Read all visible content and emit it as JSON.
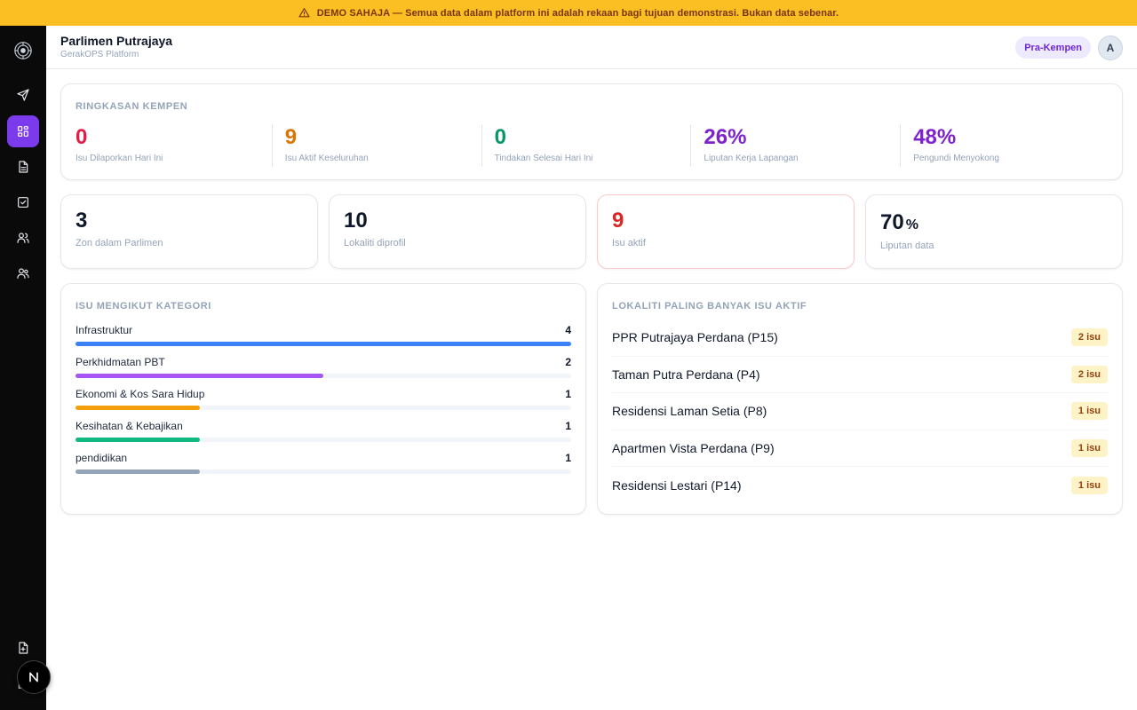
{
  "banner": {
    "text": "DEMO SAHAJA — Semua data dalam platform ini adalah rekaan bagi tujuan demonstrasi. Bukan data sebenar.",
    "icon": "warning-triangle-icon"
  },
  "sidebar": {
    "logo_icon": "emblem-logo-icon",
    "items": [
      {
        "icon": "send-icon",
        "active": false
      },
      {
        "icon": "dashboard-grid-icon",
        "active": true
      },
      {
        "icon": "document-icon",
        "active": false
      },
      {
        "icon": "checkbox-icon",
        "active": false
      },
      {
        "icon": "users-icon",
        "active": false
      },
      {
        "icon": "team-icon",
        "active": false
      }
    ],
    "bottom_items": [
      {
        "icon": "file-plus-icon"
      },
      {
        "icon": "logout-icon"
      }
    ]
  },
  "header": {
    "title": "Parlimen Putrajaya",
    "subtitle": "GerakOPS Platform",
    "phase_badge": "Pra-Kempen",
    "avatar_initial": "A"
  },
  "summary": {
    "title": "RINGKASAN KEMPEN",
    "metrics": [
      {
        "value": "0",
        "label": "Isu Dilaporkan Hari Ini",
        "color": "#e11d48"
      },
      {
        "value": "9",
        "label": "Isu Aktif Keseluruhan",
        "color": "#d97706"
      },
      {
        "value": "0",
        "label": "Tindakan Selesai Hari Ini",
        "color": "#059669"
      },
      {
        "value": "26%",
        "label": "Liputan Kerja Lapangan",
        "color": "#7e22ce"
      },
      {
        "value": "48%",
        "label": "Pengundi Menyokong",
        "color": "#7e22ce"
      }
    ]
  },
  "stats": [
    {
      "value": "3",
      "unit": "",
      "label": "Zon dalam Parlimen",
      "color": "#0f172a",
      "alert": false
    },
    {
      "value": "10",
      "unit": "",
      "label": "Lokaliti diprofil",
      "color": "#0f172a",
      "alert": false
    },
    {
      "value": "9",
      "unit": "",
      "label": "Isu aktif",
      "color": "#dc2626",
      "alert": true
    },
    {
      "value": "70",
      "unit": "%",
      "label": "Liputan data",
      "color": "#0f172a",
      "alert": false
    }
  ],
  "categories": {
    "title": "ISU MENGIKUT KATEGORI",
    "max": 4,
    "items": [
      {
        "label": "Infrastruktur",
        "count": 4,
        "color": "#3b82f6"
      },
      {
        "label": "Perkhidmatan PBT",
        "count": 2,
        "color": "#a855f7"
      },
      {
        "label": "Ekonomi & Kos Sara Hidup",
        "count": 1,
        "color": "#f59e0b"
      },
      {
        "label": "Kesihatan & Kebajikan",
        "count": 1,
        "color": "#10b981"
      },
      {
        "label": "pendidikan",
        "count": 1,
        "color": "#94a3b8"
      }
    ]
  },
  "localities": {
    "title": "LOKALITI PALING BANYAK ISU AKTIF",
    "items": [
      {
        "name": "PPR Putrajaya Perdana (P15)",
        "badge": "2 isu"
      },
      {
        "name": "Taman Putra Perdana (P4)",
        "badge": "2 isu"
      },
      {
        "name": "Residensi Laman Setia (P8)",
        "badge": "1 isu"
      },
      {
        "name": "Apartmen Vista Perdana (P9)",
        "badge": "1 isu"
      },
      {
        "name": "Residensi Lestari (P14)",
        "badge": "1 isu"
      }
    ]
  }
}
